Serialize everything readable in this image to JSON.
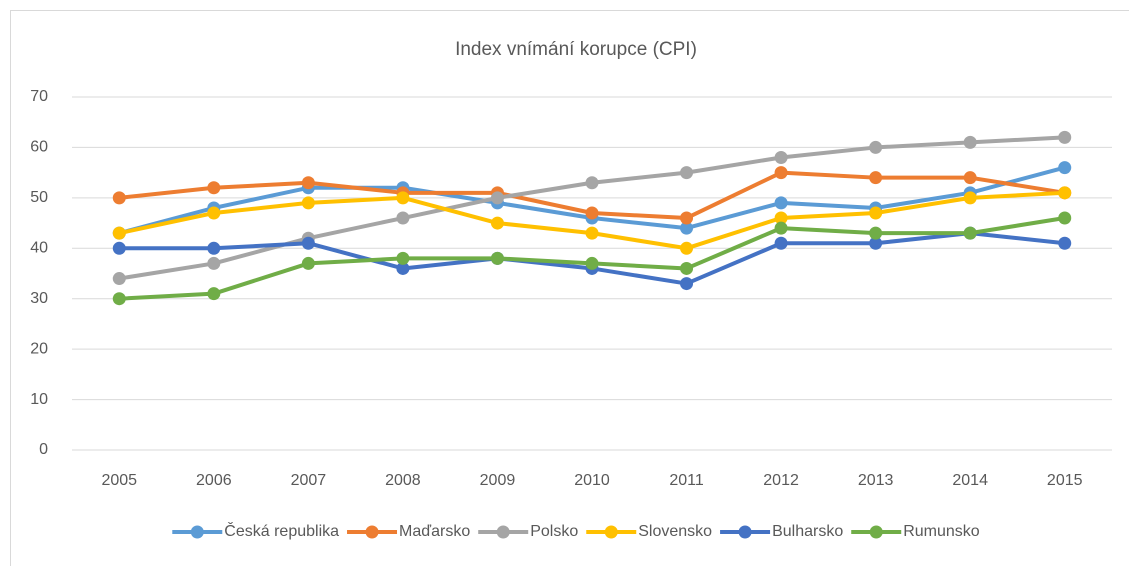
{
  "chart_data": {
    "type": "line",
    "title": "Index vnímání korupce (CPI)",
    "categories": [
      "2005",
      "2006",
      "2007",
      "2008",
      "2009",
      "2010",
      "2011",
      "2012",
      "2013",
      "2014",
      "2015"
    ],
    "series": [
      {
        "name": "Česká republika",
        "color": "#5b9bd5",
        "values": [
          43,
          48,
          52,
          52,
          49,
          46,
          44,
          49,
          48,
          51,
          56
        ]
      },
      {
        "name": "Maďarsko",
        "color": "#ed7d31",
        "values": [
          50,
          52,
          53,
          51,
          51,
          47,
          46,
          55,
          54,
          54,
          51
        ]
      },
      {
        "name": "Polsko",
        "color": "#a5a5a5",
        "values": [
          34,
          37,
          42,
          46,
          50,
          53,
          55,
          58,
          60,
          61,
          62
        ]
      },
      {
        "name": "Slovensko",
        "color": "#ffc000",
        "values": [
          43,
          47,
          49,
          50,
          45,
          43,
          40,
          46,
          47,
          50,
          51
        ]
      },
      {
        "name": "Bulharsko",
        "color": "#4472c4",
        "values": [
          40,
          40,
          41,
          36,
          38,
          36,
          33,
          41,
          41,
          43,
          41
        ]
      },
      {
        "name": "Rumunsko",
        "color": "#70ad47",
        "values": [
          30,
          31,
          37,
          38,
          38,
          37,
          36,
          44,
          43,
          43,
          46
        ]
      }
    ],
    "ylim": [
      0,
      70
    ],
    "yticks": [
      0,
      10,
      20,
      30,
      40,
      50,
      60,
      70
    ],
    "grid": true,
    "legend": "bottom"
  }
}
